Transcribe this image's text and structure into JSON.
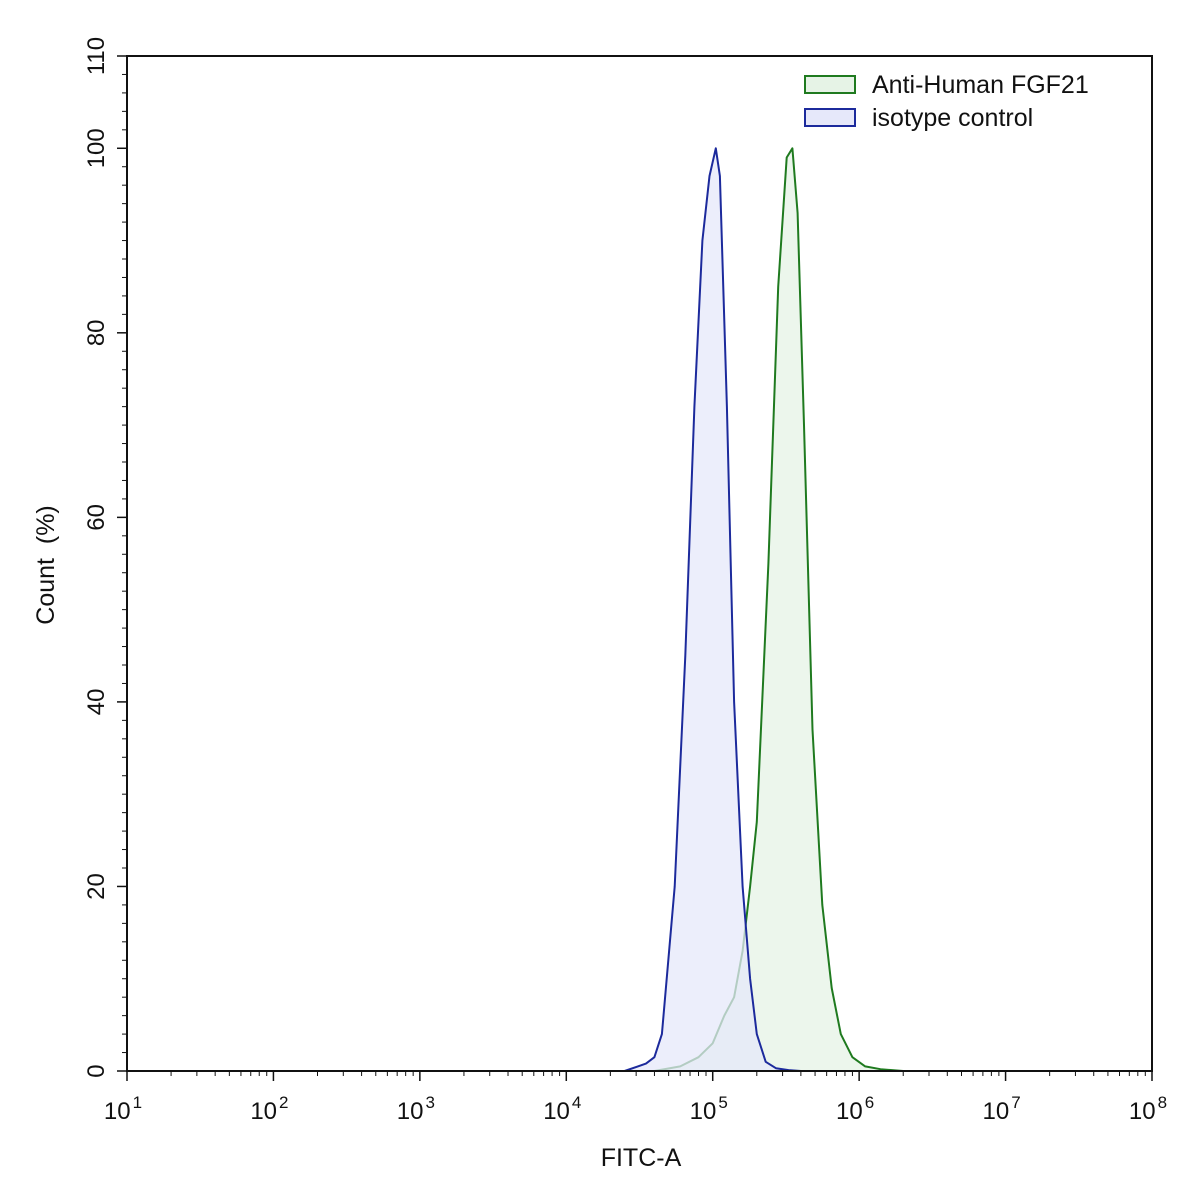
{
  "chart_data": {
    "type": "area",
    "title": "",
    "xlabel": "FITC-A",
    "ylabel": "Count  (%)",
    "x_scale": "log10",
    "xlim": [
      10,
      100000000
    ],
    "ylim": [
      0,
      110
    ],
    "x_tick_labels": [
      {
        "base": "10",
        "exp": "1"
      },
      {
        "base": "10",
        "exp": "2"
      },
      {
        "base": "10",
        "exp": "3"
      },
      {
        "base": "10",
        "exp": "4"
      },
      {
        "base": "10",
        "exp": "5"
      },
      {
        "base": "10",
        "exp": "6"
      },
      {
        "base": "10",
        "exp": "7"
      },
      {
        "base": "10",
        "exp": "8"
      }
    ],
    "x_ticks": [
      10,
      100,
      1000,
      10000,
      100000,
      1000000,
      10000000,
      100000000
    ],
    "y_ticks": [
      0,
      20,
      40,
      60,
      80,
      100,
      110
    ],
    "y_tick_labels": [
      "0",
      "20",
      "40",
      "60",
      "80",
      "100",
      "110"
    ],
    "grid": false,
    "legend_position": "top-right",
    "series": [
      {
        "name": "Anti-Human FGF21",
        "line_color": "#1f7a1f",
        "fill_color": "#e6f3e6",
        "x": [
          40000,
          60000,
          80000,
          100000,
          120000,
          140000,
          160000,
          180000,
          200000,
          240000,
          280000,
          320000,
          350000,
          380000,
          420000,
          480000,
          560000,
          650000,
          750000,
          900000,
          1100000,
          1400000,
          2000000
        ],
        "y": [
          0,
          0.5,
          1.5,
          3,
          6,
          8,
          13,
          20,
          27,
          55,
          85,
          99,
          100,
          93,
          70,
          37,
          18,
          9,
          4,
          1.5,
          0.5,
          0.2,
          0
        ]
      },
      {
        "name": "isotype control",
        "line_color": "#1c2a9c",
        "fill_color": "#e6e8fa",
        "x": [
          25000,
          35000,
          40000,
          45000,
          55000,
          65000,
          75000,
          85000,
          95000,
          105000,
          112000,
          125000,
          140000,
          160000,
          180000,
          200000,
          230000,
          270000,
          330000,
          400000
        ],
        "y": [
          0,
          0.8,
          1.5,
          4,
          20,
          45,
          72,
          90,
          97,
          100,
          97,
          72,
          40,
          20,
          10,
          4,
          1,
          0.3,
          0.1,
          0
        ]
      }
    ]
  }
}
